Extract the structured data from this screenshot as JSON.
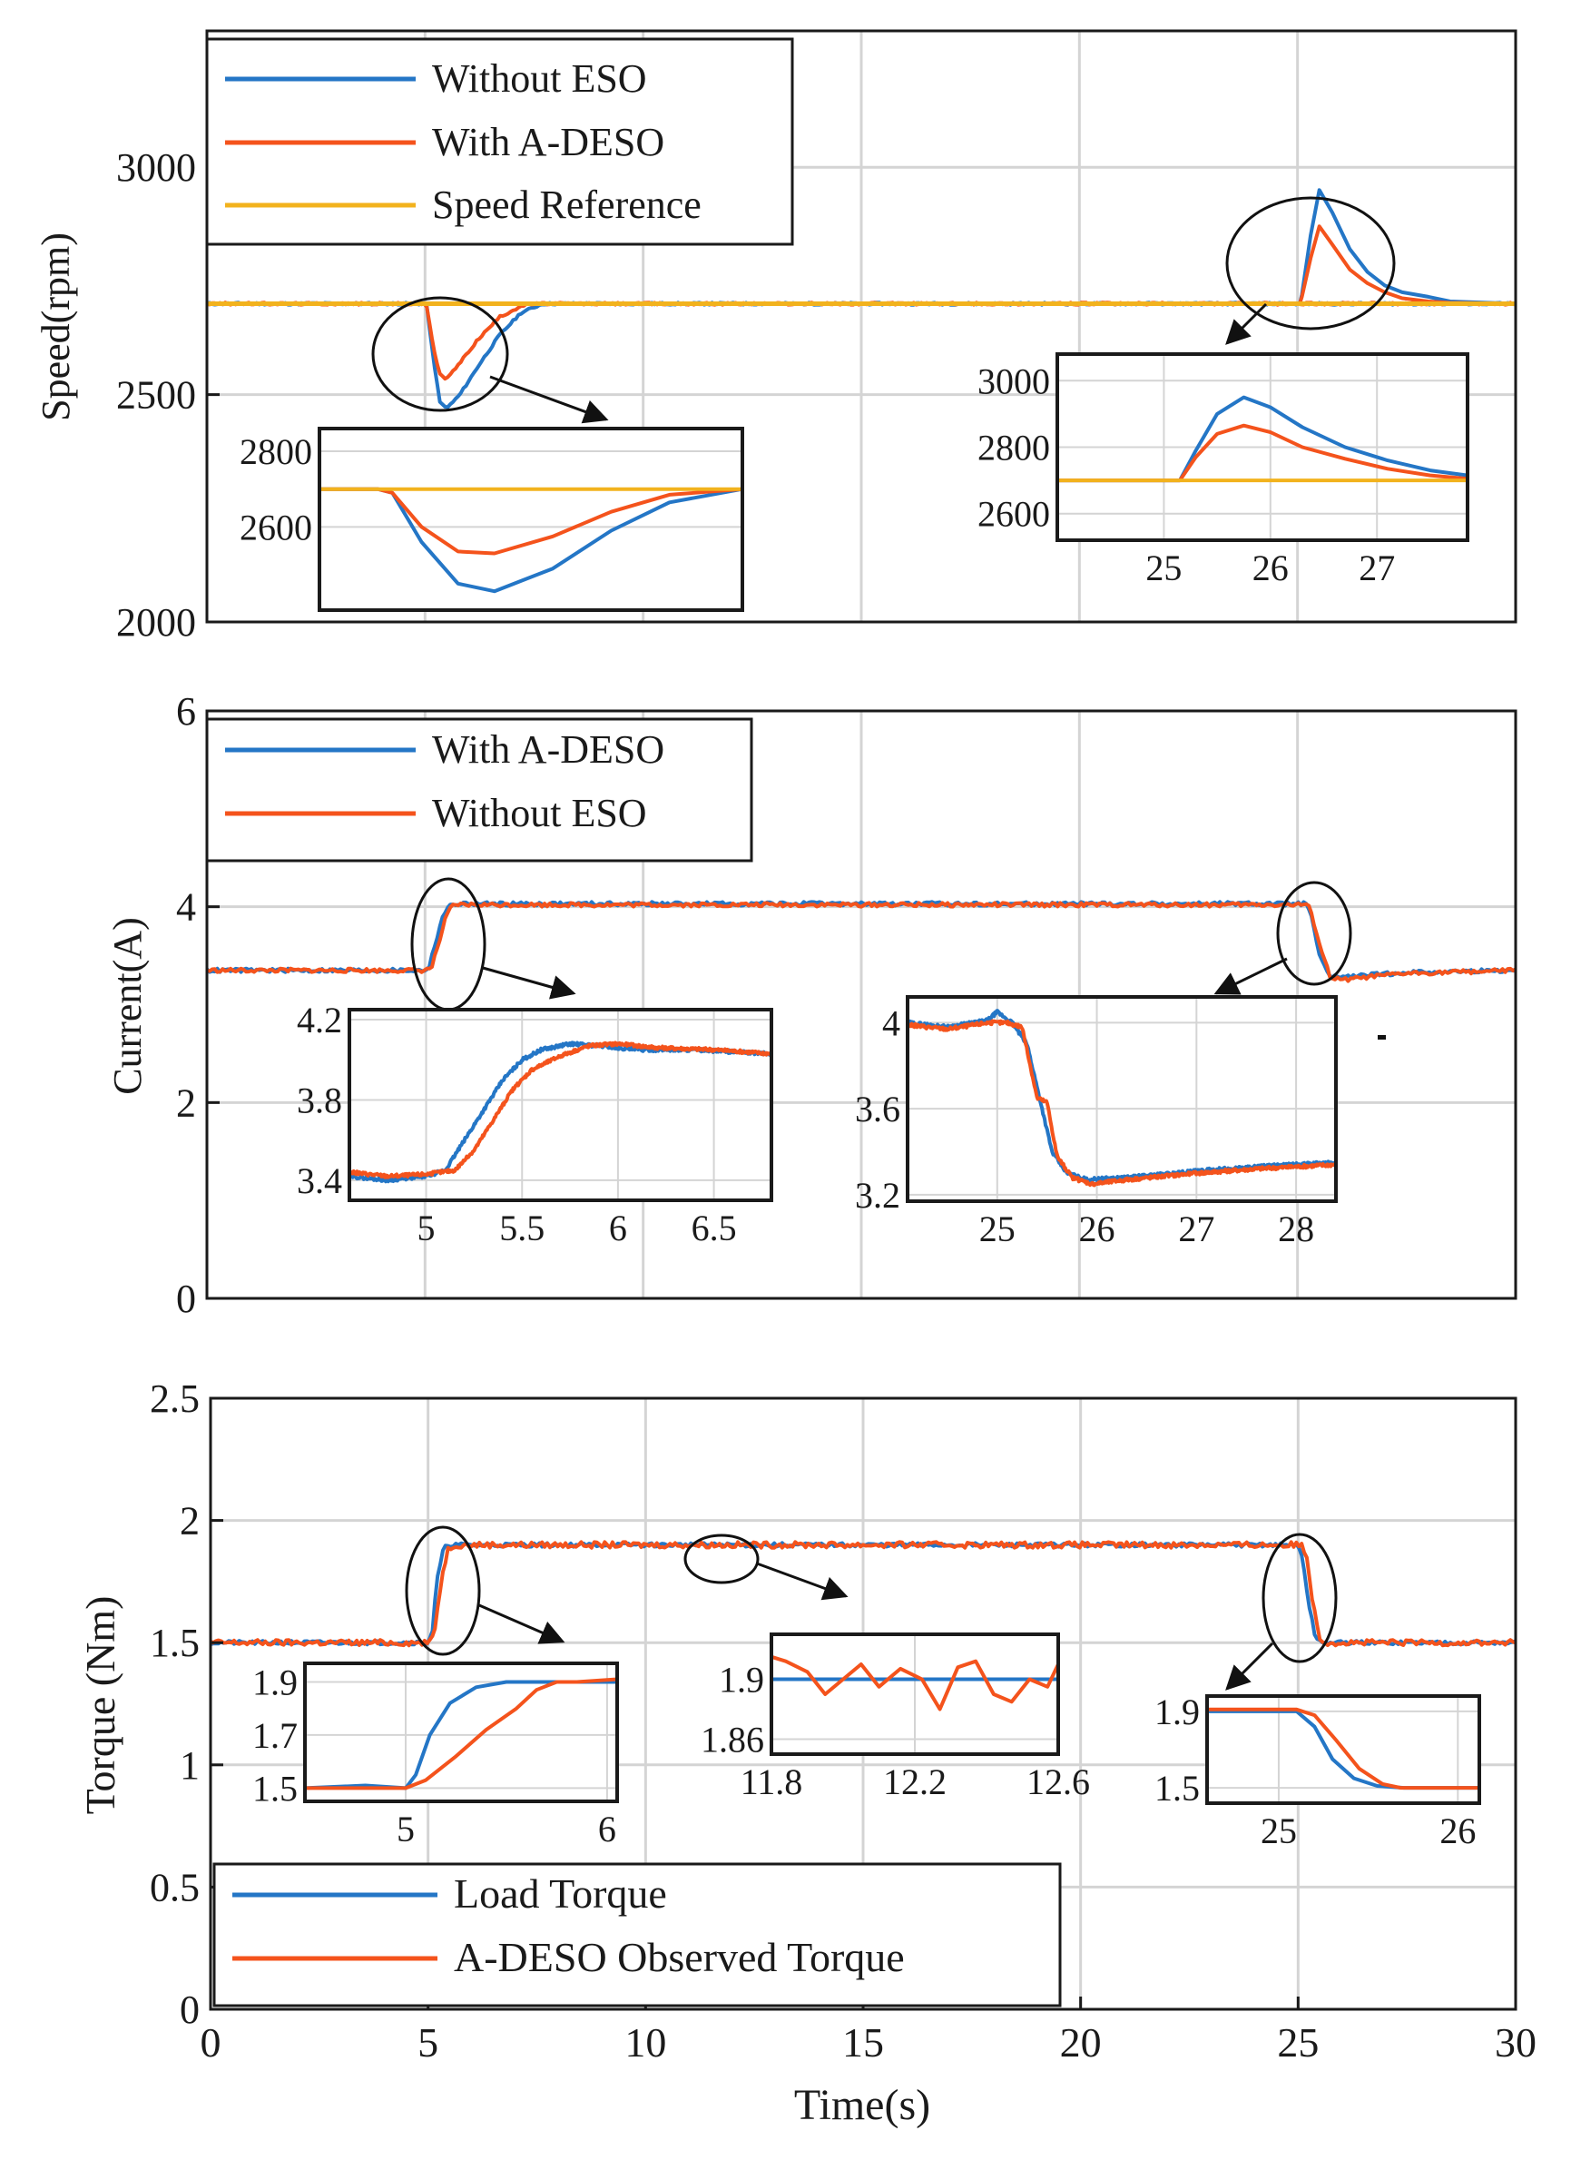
{
  "colors": {
    "blue": "#2476c6",
    "orange": "#f4531c",
    "yellow": "#f2b21d",
    "grid": "#d4d4d4",
    "frame": "#1a1a1a"
  },
  "xaxis": {
    "label": "Time(s)",
    "ticks": [
      0,
      5,
      10,
      15,
      20,
      25,
      30
    ]
  },
  "chart_data": [
    {
      "id": "speed",
      "type": "line",
      "ylabel": "Speed(rpm)",
      "xlim": [
        0,
        30
      ],
      "ylim": [
        2000,
        3300
      ],
      "yticks": [
        2000,
        2500,
        3000
      ],
      "legend_position": "top-left",
      "series": [
        {
          "name": "Without ESO",
          "color": "blue",
          "x": [
            0,
            5.0,
            5.05,
            5.2,
            5.35,
            5.5,
            5.8,
            6.2,
            6.7,
            7.2,
            7.7,
            8.0,
            30
          ],
          "y": [
            2700,
            2700,
            2690,
            2570,
            2480,
            2470,
            2500,
            2560,
            2630,
            2680,
            2700,
            2700,
            2700
          ]
        },
        {
          "name": "With A-DESO",
          "color": "orange",
          "x": [
            0,
            5.0,
            5.05,
            5.2,
            5.35,
            5.5,
            5.8,
            6.2,
            6.7,
            7.2,
            7.5,
            30
          ],
          "y": [
            2700,
            2700,
            2690,
            2600,
            2540,
            2535,
            2570,
            2620,
            2670,
            2695,
            2700,
            2700
          ]
        },
        {
          "name": "Speed Reference",
          "color": "yellow",
          "x": [
            0,
            30
          ],
          "y": [
            2700,
            2700
          ]
        }
      ],
      "extra_series": [
        {
          "name": "Without ESO (disturbance 2)",
          "color": "blue",
          "x": [
            0,
            25.05,
            25.1,
            25.3,
            25.5,
            25.8,
            26.2,
            26.6,
            27.0,
            27.4,
            28.0,
            28.5,
            30
          ],
          "y": [
            2700,
            2700,
            2720,
            2850,
            2950,
            2900,
            2820,
            2770,
            2740,
            2725,
            2715,
            2705,
            2700
          ]
        },
        {
          "name": "With A-DESO (disturbance 2)",
          "color": "orange",
          "x": [
            0,
            25.05,
            25.1,
            25.3,
            25.5,
            25.8,
            26.2,
            26.6,
            27.0,
            27.4,
            28.0,
            28.5,
            30
          ],
          "y": [
            2700,
            2700,
            2715,
            2800,
            2870,
            2830,
            2775,
            2745,
            2725,
            2712,
            2705,
            2702,
            2700
          ]
        }
      ],
      "insets": [
        {
          "id": "speed-inset-1",
          "xlim": [
            3.8,
            6.7
          ],
          "ylim": [
            2380,
            2860
          ],
          "yticks": [
            2600,
            2800
          ],
          "xticks": [],
          "series": [
            {
              "color": "blue",
              "x": [
                3.8,
                4.2,
                4.3,
                4.5,
                4.75,
                5.0,
                5.4,
                5.8,
                6.2,
                6.7
              ],
              "y": [
                2700,
                2700,
                2690,
                2560,
                2450,
                2430,
                2490,
                2590,
                2665,
                2700
              ]
            },
            {
              "color": "orange",
              "x": [
                3.8,
                4.2,
                4.3,
                4.5,
                4.75,
                5.0,
                5.4,
                5.8,
                6.2,
                6.7
              ],
              "y": [
                2700,
                2700,
                2690,
                2600,
                2535,
                2530,
                2575,
                2640,
                2685,
                2700
              ]
            },
            {
              "color": "yellow",
              "x": [
                3.8,
                6.7
              ],
              "y": [
                2700,
                2700
              ]
            }
          ]
        },
        {
          "id": "speed-inset-2",
          "xlim": [
            24.0,
            27.85
          ],
          "ylim": [
            2520,
            3080
          ],
          "yticks": [
            2600,
            2800,
            3000
          ],
          "xticks": [
            25,
            26,
            27
          ],
          "series": [
            {
              "color": "blue",
              "x": [
                24.0,
                25.15,
                25.3,
                25.5,
                25.75,
                26.0,
                26.3,
                26.7,
                27.1,
                27.5,
                27.85
              ],
              "y": [
                2700,
                2700,
                2790,
                2900,
                2950,
                2920,
                2860,
                2800,
                2760,
                2730,
                2715
              ]
            },
            {
              "color": "orange",
              "x": [
                24.0,
                25.15,
                25.3,
                25.5,
                25.75,
                26.0,
                26.3,
                26.7,
                27.1,
                27.5,
                27.85
              ],
              "y": [
                2700,
                2700,
                2770,
                2840,
                2865,
                2845,
                2800,
                2765,
                2735,
                2715,
                2705
              ]
            },
            {
              "color": "yellow",
              "x": [
                24.0,
                27.85
              ],
              "y": [
                2700,
                2700
              ]
            }
          ]
        }
      ]
    },
    {
      "id": "current",
      "type": "line",
      "ylabel": "Current(A)",
      "xlim": [
        0,
        30
      ],
      "ylim": [
        0,
        6
      ],
      "yticks": [
        0,
        2,
        4,
        6
      ],
      "legend_position": "top-left",
      "series": [
        {
          "name": "With A-DESO",
          "color": "blue",
          "x": [
            0,
            5.0,
            5.1,
            5.25,
            5.4,
            5.55,
            5.7,
            25.2,
            25.35,
            25.5,
            25.7,
            26.0,
            26.6,
            27.5,
            30
          ],
          "y": [
            3.35,
            3.35,
            3.4,
            3.65,
            3.9,
            4.0,
            4.03,
            4.03,
            3.85,
            3.5,
            3.3,
            3.28,
            3.3,
            3.33,
            3.35
          ]
        },
        {
          "name": "Without ESO",
          "color": "orange",
          "x": [
            0,
            5.0,
            5.15,
            5.3,
            5.45,
            5.6,
            5.75,
            25.25,
            25.4,
            25.55,
            25.75,
            26.0,
            26.6,
            27.5,
            30
          ],
          "y": [
            3.35,
            3.35,
            3.38,
            3.6,
            3.85,
            4.0,
            4.02,
            4.02,
            3.8,
            3.55,
            3.28,
            3.25,
            3.28,
            3.32,
            3.35
          ]
        }
      ],
      "insets": [
        {
          "id": "current-inset-1",
          "xlim": [
            4.6,
            6.8
          ],
          "ylim": [
            3.3,
            4.25
          ],
          "yticks": [
            3.4,
            3.8,
            4.2
          ],
          "xticks": [
            5,
            5.5,
            6,
            6.5
          ],
          "series": [
            {
              "color": "blue",
              "x": [
                4.6,
                4.8,
                5.0,
                5.1,
                5.2,
                5.3,
                5.4,
                5.5,
                5.6,
                5.75,
                5.9,
                6.1,
                6.4,
                6.8
              ],
              "y": [
                3.42,
                3.4,
                3.42,
                3.45,
                3.6,
                3.75,
                3.9,
                4.0,
                4.05,
                4.08,
                4.07,
                4.05,
                4.05,
                4.03
              ]
            },
            {
              "color": "orange",
              "x": [
                4.6,
                4.8,
                5.0,
                5.15,
                5.25,
                5.35,
                5.45,
                5.55,
                5.7,
                5.85,
                6.0,
                6.2,
                6.5,
                6.8
              ],
              "y": [
                3.44,
                3.42,
                3.43,
                3.45,
                3.55,
                3.7,
                3.85,
                3.95,
                4.02,
                4.07,
                4.08,
                4.06,
                4.05,
                4.03
              ]
            }
          ]
        },
        {
          "id": "current-inset-2",
          "xlim": [
            24.1,
            28.4
          ],
          "ylim": [
            3.17,
            4.12
          ],
          "yticks": [
            3.2,
            3.6,
            4.0
          ],
          "ytick_labels": [
            "3.2",
            "3.6",
            "4"
          ],
          "xticks": [
            25,
            26,
            27,
            28
          ],
          "series": [
            {
              "color": "blue",
              "x": [
                24.1,
                24.5,
                24.9,
                25.0,
                25.15,
                25.3,
                25.45,
                25.55,
                25.7,
                25.9,
                26.3,
                27.0,
                27.6,
                28.4
              ],
              "y": [
                4.0,
                3.98,
                4.01,
                4.05,
                4.0,
                3.9,
                3.6,
                3.4,
                3.3,
                3.27,
                3.28,
                3.31,
                3.33,
                3.35
              ]
            },
            {
              "color": "orange",
              "x": [
                24.1,
                24.5,
                24.9,
                25.1,
                25.25,
                25.4,
                25.5,
                25.6,
                25.75,
                25.95,
                26.3,
                27.0,
                27.6,
                28.4
              ],
              "y": [
                3.99,
                3.97,
                4.0,
                4.0,
                3.98,
                3.65,
                3.63,
                3.38,
                3.28,
                3.25,
                3.27,
                3.3,
                3.32,
                3.34
              ]
            }
          ]
        }
      ]
    },
    {
      "id": "torque",
      "type": "line",
      "ylabel": "Torque (Nm)",
      "xlim": [
        0,
        30
      ],
      "ylim": [
        0,
        2.5
      ],
      "yticks": [
        0,
        0.5,
        1,
        1.5,
        2,
        2.5
      ],
      "xticks": [
        0,
        5,
        10,
        15,
        20,
        25,
        30
      ],
      "legend_position": "bottom-left",
      "series": [
        {
          "name": "Load Torque",
          "color": "blue",
          "x": [
            0,
            5.0,
            5.1,
            5.2,
            5.35,
            5.45,
            25.0,
            25.1,
            25.25,
            25.4,
            25.55,
            30
          ],
          "y": [
            1.5,
            1.5,
            1.55,
            1.75,
            1.88,
            1.9,
            1.9,
            1.85,
            1.65,
            1.52,
            1.5,
            1.5
          ]
        },
        {
          "name": "A-DESO Observed Torque",
          "color": "orange",
          "x": [
            0,
            5.05,
            5.15,
            5.3,
            5.45,
            5.6,
            25.1,
            25.2,
            25.35,
            25.5,
            25.65,
            30
          ],
          "y": [
            1.5,
            1.5,
            1.55,
            1.75,
            1.88,
            1.9,
            1.9,
            1.85,
            1.65,
            1.52,
            1.5,
            1.5
          ]
        }
      ],
      "insets": [
        {
          "id": "torque-inset-1",
          "xlim": [
            4.5,
            6.05
          ],
          "ylim": [
            1.45,
            1.97
          ],
          "yticks": [
            1.5,
            1.7,
            1.9
          ],
          "xticks": [
            5,
            6
          ],
          "series": [
            {
              "color": "blue",
              "x": [
                4.5,
                4.8,
                5.0,
                5.05,
                5.12,
                5.22,
                5.35,
                5.5,
                5.7,
                6.05
              ],
              "y": [
                1.5,
                1.51,
                1.5,
                1.55,
                1.7,
                1.82,
                1.88,
                1.9,
                1.9,
                1.9
              ]
            },
            {
              "color": "orange",
              "x": [
                4.5,
                4.8,
                5.0,
                5.1,
                5.25,
                5.4,
                5.55,
                5.65,
                5.75,
                5.85,
                6.05
              ],
              "y": [
                1.5,
                1.5,
                1.5,
                1.53,
                1.62,
                1.72,
                1.8,
                1.87,
                1.9,
                1.9,
                1.91
              ]
            }
          ]
        },
        {
          "id": "torque-inset-2",
          "xlim": [
            11.8,
            12.6
          ],
          "ylim": [
            1.85,
            1.93
          ],
          "yticks": [
            1.86,
            1.9
          ],
          "xticks": [
            11.8,
            12.2,
            12.6
          ],
          "series": [
            {
              "color": "blue",
              "x": [
                11.8,
                12.0,
                12.2,
                12.4,
                12.6
              ],
              "y": [
                1.9,
                1.9,
                1.9,
                1.9,
                1.9
              ]
            },
            {
              "color": "orange",
              "x": [
                11.8,
                11.84,
                11.9,
                11.95,
                12.0,
                12.05,
                12.1,
                12.16,
                12.22,
                12.27,
                12.32,
                12.37,
                12.42,
                12.47,
                12.52,
                12.57,
                12.6
              ],
              "y": [
                1.915,
                1.912,
                1.905,
                1.89,
                1.9,
                1.91,
                1.895,
                1.907,
                1.9,
                1.88,
                1.908,
                1.912,
                1.89,
                1.885,
                1.9,
                1.895,
                1.91
              ]
            }
          ]
        },
        {
          "id": "torque-inset-3",
          "xlim": [
            24.6,
            26.12
          ],
          "ylim": [
            1.42,
            1.98
          ],
          "yticks": [
            1.5,
            1.9
          ],
          "xticks": [
            25,
            26
          ],
          "series": [
            {
              "color": "blue",
              "x": [
                24.6,
                24.9,
                25.1,
                25.2,
                25.3,
                25.42,
                25.55,
                25.7,
                26.12
              ],
              "y": [
                1.9,
                1.9,
                1.9,
                1.82,
                1.65,
                1.55,
                1.51,
                1.5,
                1.5
              ]
            },
            {
              "color": "orange",
              "x": [
                24.6,
                24.9,
                25.1,
                25.2,
                25.32,
                25.45,
                25.58,
                25.68,
                25.8,
                26.12
              ],
              "y": [
                1.91,
                1.91,
                1.91,
                1.88,
                1.75,
                1.6,
                1.52,
                1.5,
                1.5,
                1.5
              ]
            }
          ]
        }
      ]
    }
  ]
}
